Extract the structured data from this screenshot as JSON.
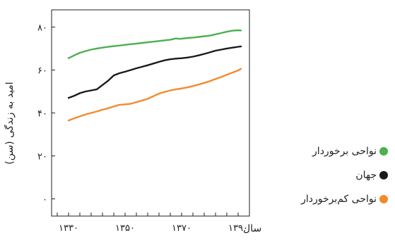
{
  "chart_data": {
    "type": "line",
    "xlabel": "سال",
    "ylabel": "امید به زندگی (سن)",
    "xlim": [
      1324,
      1394
    ],
    "ylim": [
      -8,
      88
    ],
    "x_ticks": [
      1330,
      1350,
      1370,
      1390
    ],
    "x_tick_labels": [
      "۱۳۳۰",
      "۱۳۵۰",
      "۱۳۷۰",
      "۱۳۹۰"
    ],
    "y_ticks": [
      0,
      20,
      40,
      60,
      80
    ],
    "y_tick_labels": [
      "۰",
      "۲۰",
      "۴۰",
      "۶۰",
      "۸۰"
    ],
    "grid": false,
    "legend_position": "right",
    "series": [
      {
        "name": "نواحی برخوردار",
        "color": "#4caf50",
        "x": [
          1330,
          1332,
          1334,
          1336,
          1338,
          1340,
          1342,
          1344,
          1346,
          1348,
          1350,
          1352,
          1354,
          1356,
          1358,
          1360,
          1362,
          1364,
          1366,
          1368,
          1369,
          1370,
          1372,
          1374,
          1376,
          1378,
          1380,
          1382,
          1384,
          1386,
          1388,
          1390,
          1391
        ],
        "y": [
          65.5,
          66.8,
          68,
          68.8,
          69.5,
          70,
          70.4,
          70.8,
          71.1,
          71.4,
          71.7,
          72,
          72.3,
          72.6,
          72.9,
          73.2,
          73.5,
          73.8,
          74.1,
          74.7,
          74.5,
          74.6,
          74.9,
          75.1,
          75.4,
          75.7,
          76,
          76.6,
          77.2,
          77.8,
          78.3,
          78.5,
          78.4
        ]
      },
      {
        "name": "جهان",
        "color": "#1a1a1a",
        "x": [
          1330,
          1332,
          1334,
          1336,
          1338,
          1340,
          1342,
          1344,
          1346,
          1348,
          1350,
          1352,
          1354,
          1356,
          1358,
          1360,
          1362,
          1364,
          1366,
          1368,
          1370,
          1372,
          1374,
          1376,
          1378,
          1380,
          1382,
          1384,
          1386,
          1388,
          1390,
          1391
        ],
        "y": [
          47,
          48,
          49.2,
          50,
          50.5,
          51,
          53,
          55,
          57.5,
          58.5,
          59.2,
          60,
          60.8,
          61.5,
          62.2,
          63,
          63.8,
          64.5,
          65,
          65.3,
          65.5,
          65.8,
          66.2,
          66.8,
          67.5,
          68.2,
          69,
          69.5,
          70,
          70.4,
          70.8,
          71
        ]
      },
      {
        "name": "نواحی کم‌برخوردار",
        "color": "#f28a2e",
        "x": [
          1330,
          1332,
          1334,
          1336,
          1338,
          1340,
          1342,
          1344,
          1346,
          1348,
          1350,
          1352,
          1354,
          1356,
          1358,
          1360,
          1362,
          1364,
          1366,
          1368,
          1370,
          1372,
          1374,
          1376,
          1378,
          1380,
          1382,
          1384,
          1386,
          1388,
          1390,
          1391
        ],
        "y": [
          36.5,
          37.5,
          38.4,
          39.3,
          40,
          40.7,
          41.5,
          42.2,
          43,
          43.8,
          44,
          44.3,
          45,
          45.8,
          46.6,
          47.8,
          49,
          49.8,
          50.5,
          51,
          51.4,
          51.9,
          52.5,
          53.2,
          54,
          54.8,
          55.8,
          56.7,
          57.8,
          58.8,
          59.8,
          60.5
        ]
      }
    ]
  },
  "legend": {
    "items": [
      {
        "label": "نواحی برخوردار",
        "color": "#4caf50"
      },
      {
        "label": "جهان",
        "color": "#1a1a1a"
      },
      {
        "label": "نواحی کم‌برخوردار",
        "color": "#f28a2e"
      }
    ]
  }
}
